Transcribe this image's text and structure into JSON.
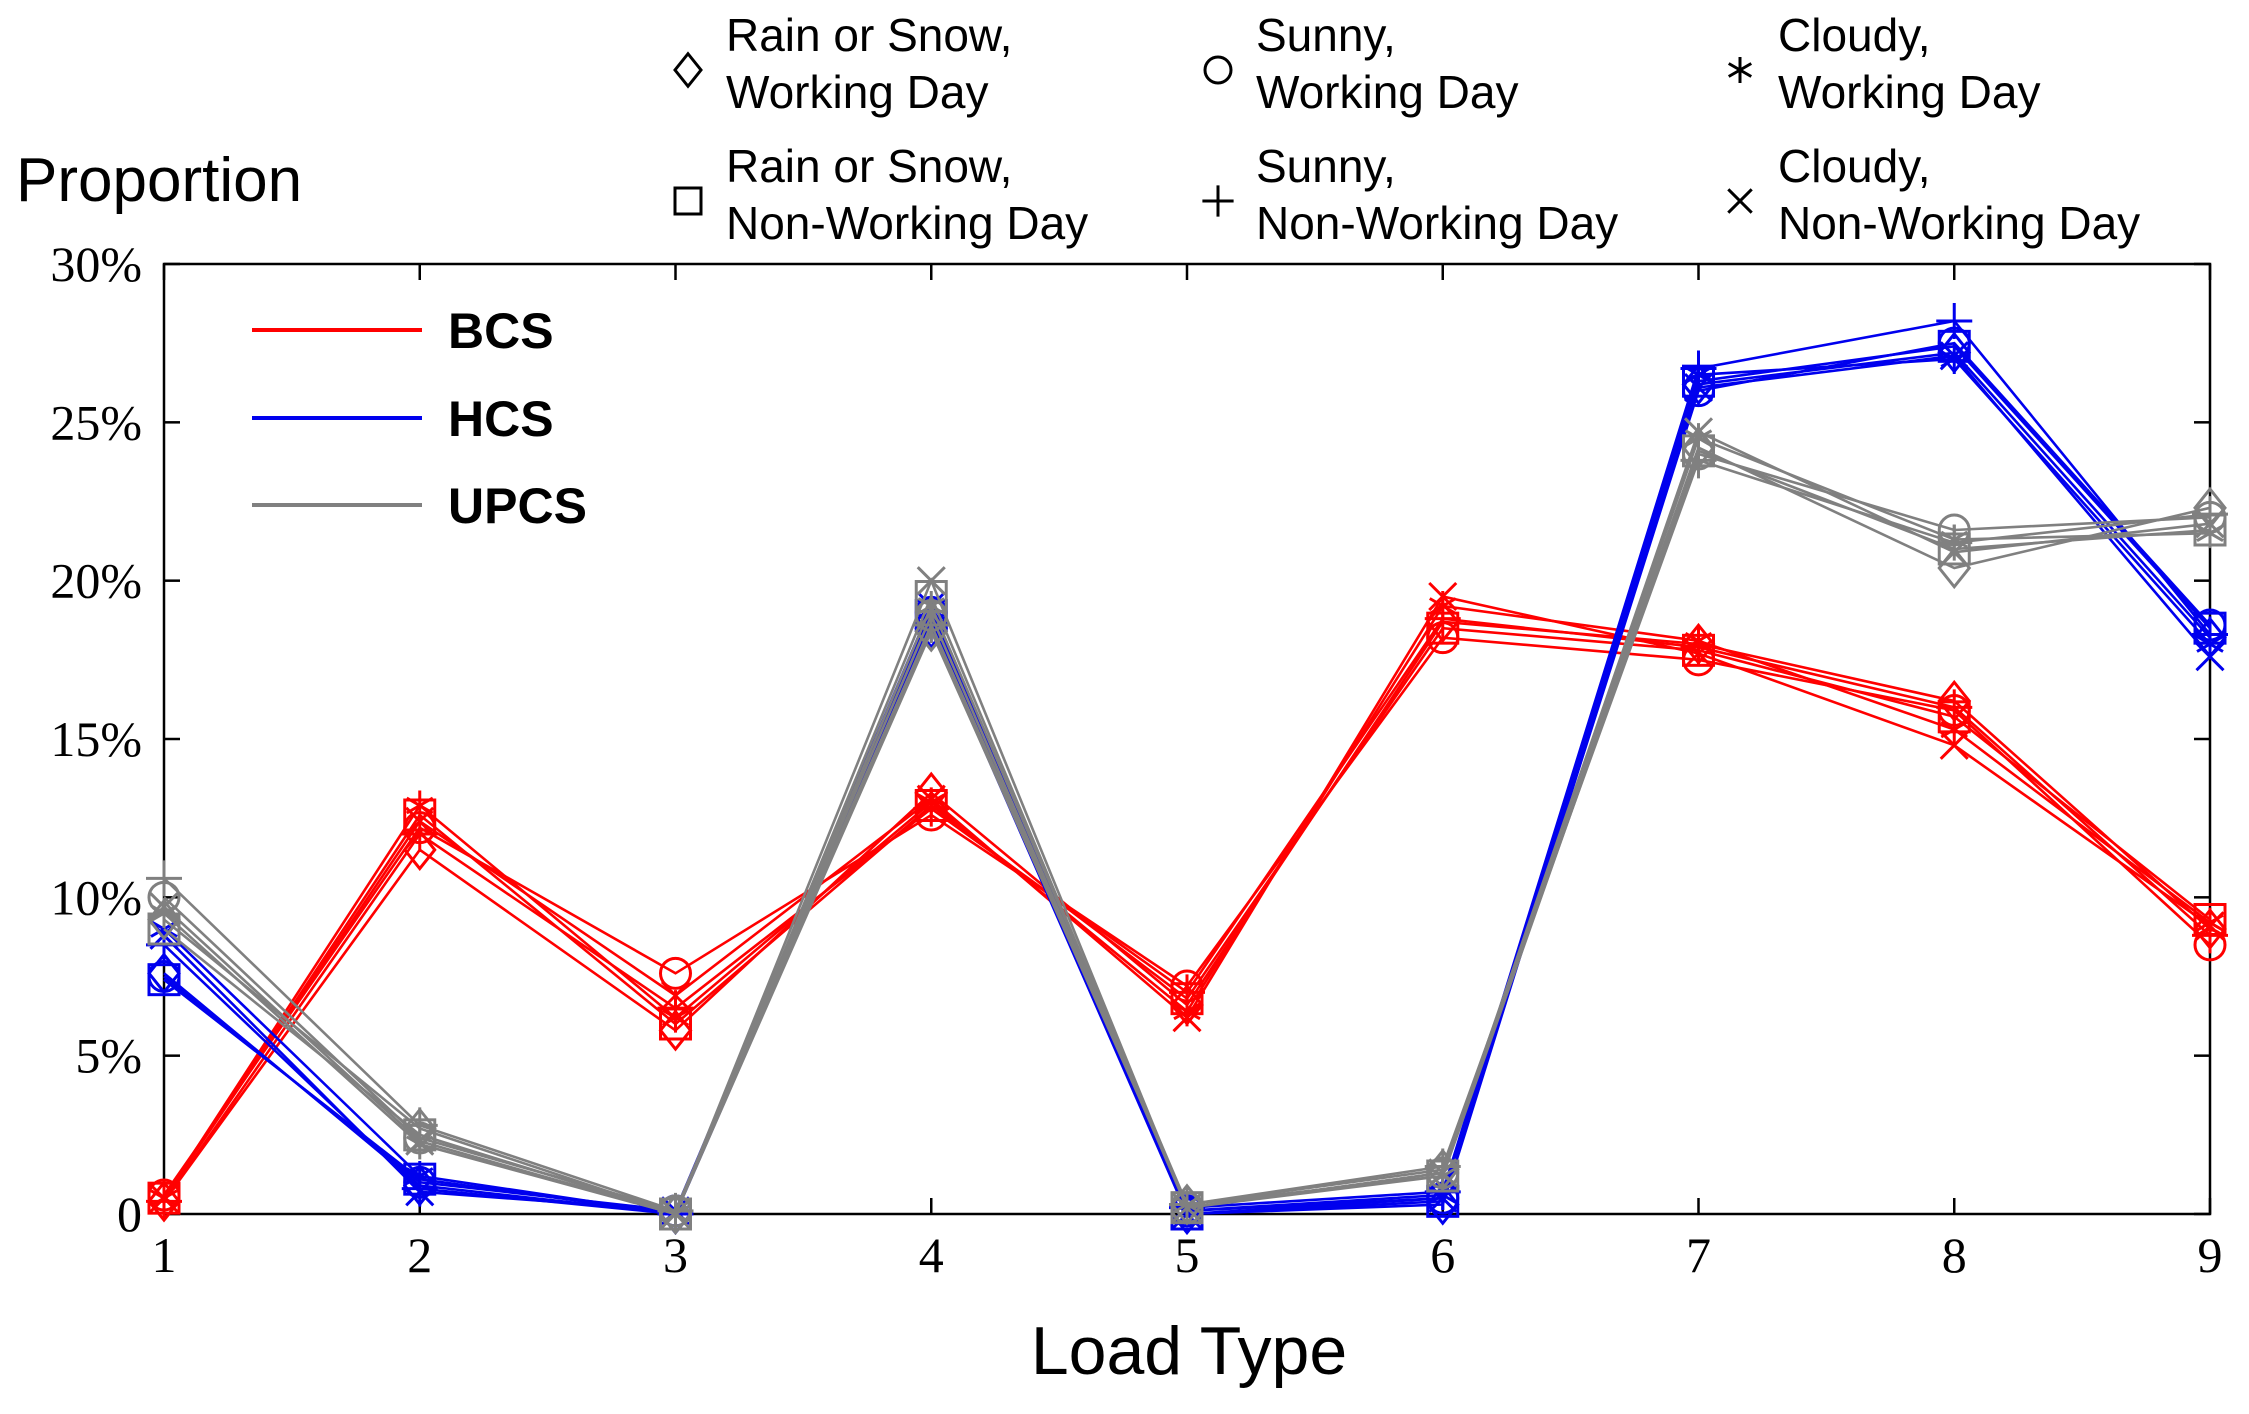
{
  "chart_data": {
    "type": "line",
    "title": "",
    "xlabel": "Load Type",
    "ylabel": "Proportion",
    "categories": [
      "1",
      "2",
      "3",
      "4",
      "5",
      "6",
      "7",
      "8",
      "9"
    ],
    "ylim": [
      0,
      30
    ],
    "yticks": [
      0,
      5,
      10,
      15,
      20,
      25,
      30
    ],
    "ytick_labels": [
      "0",
      "5%",
      "10%",
      "15%",
      "20%",
      "25%",
      "30%"
    ],
    "grid": false,
    "groups": [
      {
        "name": "BCS",
        "color": "#ff0000"
      },
      {
        "name": "HCS",
        "color": "#0000ee"
      },
      {
        "name": "UPCS",
        "color": "#808080"
      }
    ],
    "conditions": [
      {
        "key": "rsw",
        "marker": "diamond",
        "label_line1": "Rain or Snow,",
        "label_line2": "Working Day"
      },
      {
        "key": "sw",
        "marker": "circle",
        "label_line1": "Sunny,",
        "label_line2": "Working Day"
      },
      {
        "key": "cw",
        "marker": "asterisk",
        "label_line1": "Cloudy,",
        "label_line2": "Working Day"
      },
      {
        "key": "rsn",
        "marker": "square",
        "label_line1": "Rain or Snow,",
        "label_line2": "Non-Working Day"
      },
      {
        "key": "sn",
        "marker": "plus",
        "label_line1": "Sunny,",
        "label_line2": "Non-Working Day"
      },
      {
        "key": "cn",
        "marker": "x",
        "label_line1": "Cloudy,",
        "label_line2": "Non-Working Day"
      }
    ],
    "series": [
      {
        "name": "BCS, Rain or Snow, Working Day",
        "group": "BCS",
        "condition": "rsw",
        "values": [
          0.4,
          11.5,
          5.8,
          13.3,
          6.6,
          18.7,
          18.0,
          16.2,
          9.0
        ]
      },
      {
        "name": "BCS, Sunny, Working Day",
        "group": "BCS",
        "condition": "sw",
        "values": [
          0.6,
          12.2,
          7.6,
          12.6,
          7.2,
          18.2,
          17.5,
          15.9,
          8.5
        ]
      },
      {
        "name": "BCS, Cloudy, Working Day",
        "group": "BCS",
        "condition": "cw",
        "values": [
          0.5,
          12.9,
          6.2,
          13.0,
          6.4,
          19.2,
          18.1,
          15.3,
          9.2
        ]
      },
      {
        "name": "BCS, Rain or Snow, Non-Working Day",
        "group": "BCS",
        "condition": "rsn",
        "values": [
          0.5,
          12.6,
          6.0,
          12.9,
          6.8,
          18.5,
          17.8,
          15.7,
          9.3
        ]
      },
      {
        "name": "BCS, Sunny, Non-Working Day",
        "group": "BCS",
        "condition": "sn",
        "values": [
          0.4,
          12.0,
          6.5,
          12.8,
          7.0,
          18.8,
          17.9,
          16.0,
          8.8
        ]
      },
      {
        "name": "BCS, Cloudy, Non-Working Day",
        "group": "BCS",
        "condition": "cn",
        "values": [
          0.5,
          12.4,
          6.9,
          13.1,
          6.2,
          19.5,
          17.7,
          14.8,
          9.1
        ]
      },
      {
        "name": "HCS, Rain or Snow, Working Day",
        "group": "HCS",
        "condition": "rsw",
        "values": [
          7.6,
          0.9,
          0.0,
          18.5,
          0.0,
          0.3,
          26.2,
          27.2,
          18.2
        ]
      },
      {
        "name": "HCS, Sunny, Working Day",
        "group": "HCS",
        "condition": "sw",
        "values": [
          7.5,
          1.0,
          0.1,
          19.0,
          0.1,
          0.5,
          26.0,
          27.5,
          18.6
        ]
      },
      {
        "name": "HCS, Cloudy, Working Day",
        "group": "HCS",
        "condition": "cw",
        "values": [
          9.0,
          1.2,
          0.0,
          18.7,
          0.1,
          0.6,
          26.5,
          27.0,
          18.0
        ]
      },
      {
        "name": "HCS, Rain or Snow, Non-Working Day",
        "group": "HCS",
        "condition": "rsn",
        "values": [
          7.4,
          1.1,
          0.0,
          18.9,
          0.0,
          0.4,
          26.3,
          27.4,
          18.5
        ]
      },
      {
        "name": "HCS, Sunny, Non-Working Day",
        "group": "HCS",
        "condition": "sn",
        "values": [
          8.5,
          0.8,
          0.0,
          18.6,
          0.2,
          0.7,
          26.7,
          28.2,
          18.3
        ]
      },
      {
        "name": "HCS, Cloudy, Non-Working Day",
        "group": "HCS",
        "condition": "cn",
        "values": [
          8.8,
          0.7,
          0.1,
          19.2,
          0.0,
          0.5,
          26.1,
          27.1,
          17.6
        ]
      },
      {
        "name": "UPCS, Rain or Snow, Working Day",
        "group": "UPCS",
        "condition": "rsw",
        "values": [
          9.3,
          2.7,
          0.0,
          18.4,
          0.3,
          1.4,
          24.2,
          20.4,
          22.3
        ]
      },
      {
        "name": "UPCS, Sunny, Working Day",
        "group": "UPCS",
        "condition": "sw",
        "values": [
          10.0,
          2.4,
          0.1,
          18.9,
          0.2,
          1.3,
          24.0,
          21.6,
          22.0
        ]
      },
      {
        "name": "UPCS, Cloudy, Working Day",
        "group": "UPCS",
        "condition": "cw",
        "values": [
          9.5,
          2.2,
          0.0,
          19.2,
          0.3,
          1.2,
          24.5,
          21.3,
          21.5
        ]
      },
      {
        "name": "UPCS, Rain or Snow, Non-Working Day",
        "group": "UPCS",
        "condition": "rsn",
        "values": [
          9.0,
          2.5,
          0.0,
          19.5,
          0.2,
          1.2,
          24.1,
          21.0,
          21.6
        ]
      },
      {
        "name": "UPCS, Sunny, Non-Working Day",
        "group": "UPCS",
        "condition": "sn",
        "values": [
          10.6,
          2.8,
          0.1,
          18.6,
          0.3,
          1.5,
          23.8,
          21.2,
          22.1
        ]
      },
      {
        "name": "UPCS, Cloudy, Non-Working Day",
        "group": "UPCS",
        "condition": "cn",
        "values": [
          9.7,
          2.3,
          0.0,
          20.0,
          0.2,
          1.3,
          24.7,
          20.9,
          21.8
        ]
      }
    ]
  }
}
